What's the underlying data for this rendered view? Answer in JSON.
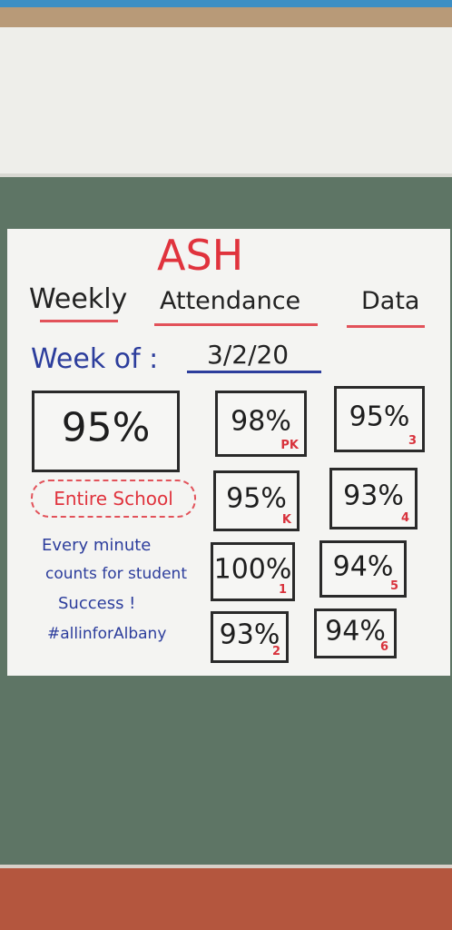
{
  "header": {
    "title": "ASH",
    "subtitle": [
      "Weekly",
      "Attendance",
      "Data"
    ]
  },
  "week": {
    "label": "Week of :",
    "date": "3/2/20"
  },
  "school": {
    "value": "95%",
    "label": "Entire School"
  },
  "grades": [
    {
      "value": "98%",
      "grade": "PK"
    },
    {
      "value": "95%",
      "grade": "3"
    },
    {
      "value": "95%",
      "grade": "K"
    },
    {
      "value": "93%",
      "grade": "4"
    },
    {
      "value": "100%",
      "grade": "1"
    },
    {
      "value": "94%",
      "grade": "5"
    },
    {
      "value": "93%",
      "grade": "2"
    },
    {
      "value": "94%",
      "grade": "6"
    }
  ],
  "message": [
    "Every minute",
    "counts for student",
    "Success !",
    "#allinforAlbany"
  ]
}
